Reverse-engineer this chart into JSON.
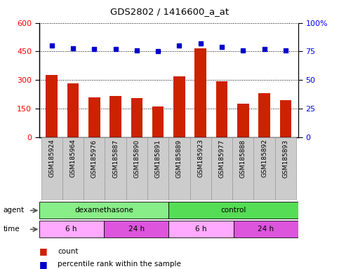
{
  "title": "GDS2802 / 1416600_a_at",
  "samples": [
    "GSM185924",
    "GSM185964",
    "GSM185976",
    "GSM185887",
    "GSM185890",
    "GSM185891",
    "GSM185889",
    "GSM185923",
    "GSM185977",
    "GSM185888",
    "GSM185892",
    "GSM185893"
  ],
  "counts": [
    325,
    283,
    210,
    215,
    205,
    160,
    318,
    465,
    295,
    175,
    230,
    195
  ],
  "percentile": [
    80,
    78,
    77,
    77,
    76,
    75,
    80,
    82,
    79,
    76,
    77,
    76
  ],
  "ylim_left": [
    0,
    600
  ],
  "ylim_right": [
    0,
    100
  ],
  "yticks_left": [
    0,
    150,
    300,
    450,
    600
  ],
  "yticks_right": [
    0,
    25,
    50,
    75,
    100
  ],
  "bar_color": "#cc2200",
  "dot_color": "#0000cc",
  "agent_groups": [
    {
      "label": "dexamethasone",
      "start": 0,
      "end": 6,
      "color": "#88ee88"
    },
    {
      "label": "control",
      "start": 6,
      "end": 12,
      "color": "#55dd55"
    }
  ],
  "time_groups": [
    {
      "label": "6 h",
      "start": 0,
      "end": 3,
      "color": "#ffaaff"
    },
    {
      "label": "24 h",
      "start": 3,
      "end": 6,
      "color": "#dd55dd"
    },
    {
      "label": "6 h",
      "start": 6,
      "end": 9,
      "color": "#ffaaff"
    },
    {
      "label": "24 h",
      "start": 9,
      "end": 12,
      "color": "#dd55dd"
    }
  ],
  "legend_count_label": "count",
  "legend_pct_label": "percentile rank within the sample",
  "agent_label": "agent",
  "time_label": "time",
  "xtick_bg_color": "#cccccc",
  "xtick_border_color": "#999999"
}
